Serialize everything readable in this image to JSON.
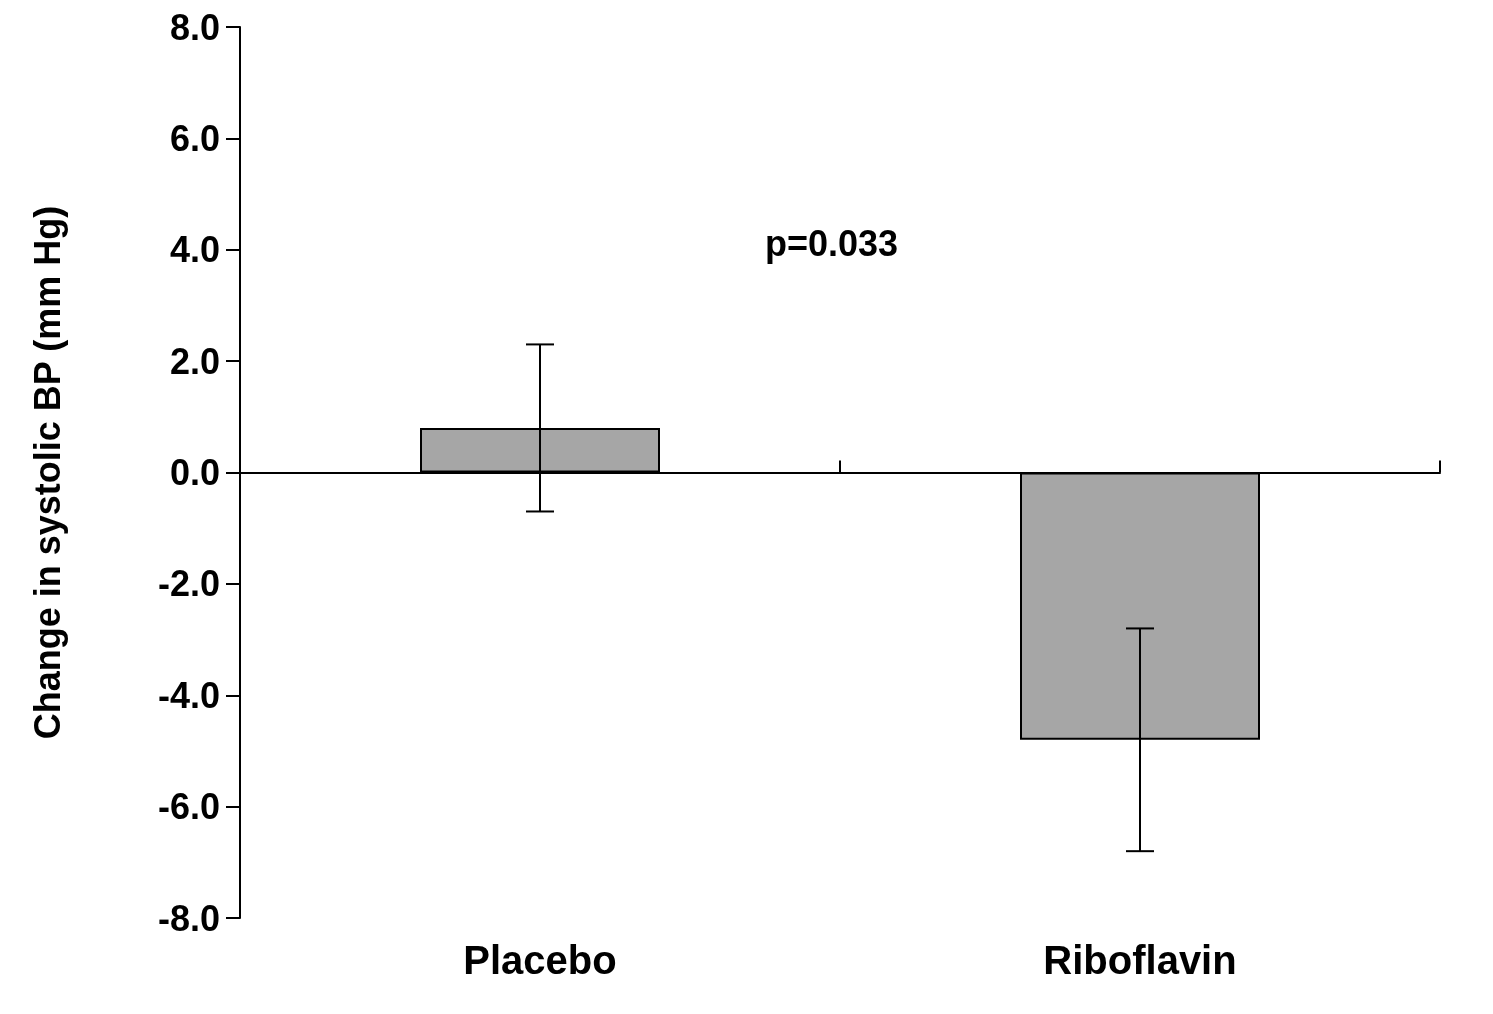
{
  "chart_data": {
    "type": "bar",
    "ylabel": "Change in systolic BP (mm Hg)",
    "categories": [
      "Placebo",
      "Riboflavin"
    ],
    "values": [
      0.8,
      -4.8
    ],
    "errors": [
      1.5,
      2.0
    ],
    "color": "#a6a6a6",
    "ylim": [
      -8,
      8
    ],
    "yticks": [
      {
        "value": -8,
        "label": "-8.0"
      },
      {
        "value": -6,
        "label": "-6.0"
      },
      {
        "value": -4,
        "label": "-4.0"
      },
      {
        "value": -2,
        "label": "-2.0"
      },
      {
        "value": 0,
        "label": "0.0"
      },
      {
        "value": 2,
        "label": "2.0"
      },
      {
        "value": 4,
        "label": "4.0"
      },
      {
        "value": 6,
        "label": "6.0"
      },
      {
        "value": 8,
        "label": "8.0"
      }
    ],
    "annotations": [
      "p=0.033"
    ]
  }
}
